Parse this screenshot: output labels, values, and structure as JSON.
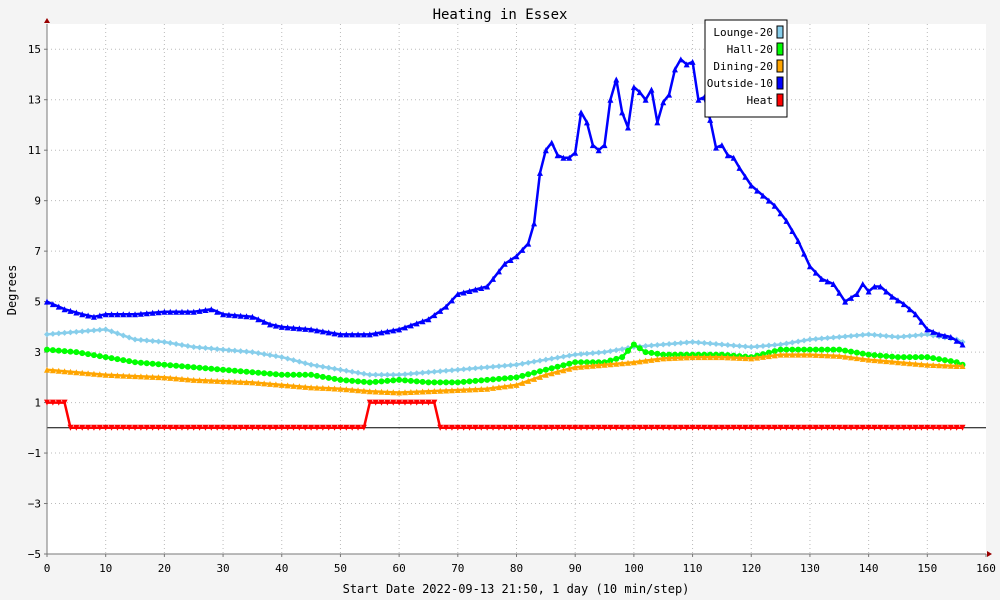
{
  "chart_data": {
    "type": "line",
    "title": "Heating in Essex",
    "xlabel": "Start Date 2022-09-13 21:50, 1 day (10 min/step)",
    "ylabel": "Degrees",
    "xlim": [
      0,
      160
    ],
    "ylim": [
      -5,
      16
    ],
    "x_ticks": [
      0,
      10,
      20,
      30,
      40,
      50,
      60,
      70,
      80,
      90,
      100,
      110,
      120,
      130,
      140,
      150,
      160
    ],
    "y_ticks": [
      -5,
      -3,
      -1,
      1,
      3,
      5,
      7,
      9,
      11,
      13,
      15
    ],
    "x_tick_labels": [
      "0",
      "10",
      "20",
      "30",
      "40",
      "50",
      "60",
      "70",
      "80",
      "90",
      "100",
      "110",
      "120",
      "130",
      "140",
      "150",
      "160"
    ],
    "y_tick_labels": [
      "−5",
      "−3",
      "−1",
      "1",
      "3",
      "5",
      "7",
      "9",
      "11",
      "13",
      "15"
    ],
    "grid": true,
    "legend_position": "top-right",
    "series": [
      {
        "name": "Lounge-20",
        "color": "#87ceeb",
        "marker": "diamond",
        "points": [
          [
            0,
            3.7
          ],
          [
            5,
            3.8
          ],
          [
            10,
            3.9
          ],
          [
            15,
            3.5
          ],
          [
            20,
            3.4
          ],
          [
            25,
            3.2
          ],
          [
            30,
            3.1
          ],
          [
            35,
            3.0
          ],
          [
            40,
            2.8
          ],
          [
            45,
            2.5
          ],
          [
            50,
            2.3
          ],
          [
            55,
            2.1
          ],
          [
            60,
            2.1
          ],
          [
            65,
            2.2
          ],
          [
            70,
            2.3
          ],
          [
            75,
            2.4
          ],
          [
            80,
            2.5
          ],
          [
            85,
            2.7
          ],
          [
            90,
            2.9
          ],
          [
            95,
            3.0
          ],
          [
            100,
            3.2
          ],
          [
            105,
            3.3
          ],
          [
            110,
            3.4
          ],
          [
            115,
            3.3
          ],
          [
            120,
            3.2
          ],
          [
            125,
            3.3
          ],
          [
            130,
            3.5
          ],
          [
            135,
            3.6
          ],
          [
            140,
            3.7
          ],
          [
            145,
            3.6
          ],
          [
            150,
            3.7
          ],
          [
            155,
            3.5
          ],
          [
            156,
            3.4
          ]
        ]
      },
      {
        "name": "Hall-20",
        "color": "#00ff00",
        "marker": "circle",
        "points": [
          [
            0,
            3.1
          ],
          [
            5,
            3.0
          ],
          [
            10,
            2.8
          ],
          [
            15,
            2.6
          ],
          [
            20,
            2.5
          ],
          [
            25,
            2.4
          ],
          [
            30,
            2.3
          ],
          [
            35,
            2.2
          ],
          [
            40,
            2.1
          ],
          [
            45,
            2.1
          ],
          [
            50,
            1.9
          ],
          [
            55,
            1.8
          ],
          [
            60,
            1.9
          ],
          [
            65,
            1.8
          ],
          [
            70,
            1.8
          ],
          [
            75,
            1.9
          ],
          [
            80,
            2.0
          ],
          [
            85,
            2.3
          ],
          [
            90,
            2.6
          ],
          [
            95,
            2.6
          ],
          [
            98,
            2.8
          ],
          [
            100,
            3.3
          ],
          [
            102,
            3.0
          ],
          [
            105,
            2.9
          ],
          [
            110,
            2.9
          ],
          [
            115,
            2.9
          ],
          [
            120,
            2.8
          ],
          [
            125,
            3.1
          ],
          [
            130,
            3.1
          ],
          [
            135,
            3.1
          ],
          [
            140,
            2.9
          ],
          [
            145,
            2.8
          ],
          [
            150,
            2.8
          ],
          [
            155,
            2.6
          ],
          [
            156,
            2.5
          ]
        ]
      },
      {
        "name": "Dining-20",
        "color": "#ffa500",
        "marker": "triangle-up",
        "points": [
          [
            0,
            2.3
          ],
          [
            5,
            2.2
          ],
          [
            10,
            2.1
          ],
          [
            15,
            2.05
          ],
          [
            20,
            2.0
          ],
          [
            25,
            1.9
          ],
          [
            30,
            1.85
          ],
          [
            35,
            1.8
          ],
          [
            40,
            1.7
          ],
          [
            45,
            1.6
          ],
          [
            50,
            1.55
          ],
          [
            55,
            1.45
          ],
          [
            60,
            1.4
          ],
          [
            65,
            1.45
          ],
          [
            70,
            1.5
          ],
          [
            75,
            1.55
          ],
          [
            80,
            1.7
          ],
          [
            85,
            2.1
          ],
          [
            90,
            2.4
          ],
          [
            95,
            2.5
          ],
          [
            100,
            2.6
          ],
          [
            105,
            2.75
          ],
          [
            110,
            2.8
          ],
          [
            115,
            2.8
          ],
          [
            120,
            2.75
          ],
          [
            125,
            2.9
          ],
          [
            130,
            2.9
          ],
          [
            135,
            2.85
          ],
          [
            140,
            2.7
          ],
          [
            145,
            2.6
          ],
          [
            150,
            2.5
          ],
          [
            155,
            2.45
          ],
          [
            156,
            2.45
          ]
        ]
      },
      {
        "name": "Outside-10",
        "color": "#0000ff",
        "marker": "triangle-up",
        "points": [
          [
            0,
            5.0
          ],
          [
            3,
            4.7
          ],
          [
            6,
            4.5
          ],
          [
            8,
            4.4
          ],
          [
            10,
            4.5
          ],
          [
            15,
            4.5
          ],
          [
            20,
            4.6
          ],
          [
            25,
            4.6
          ],
          [
            28,
            4.7
          ],
          [
            30,
            4.5
          ],
          [
            35,
            4.4
          ],
          [
            38,
            4.1
          ],
          [
            40,
            4.0
          ],
          [
            45,
            3.9
          ],
          [
            50,
            3.7
          ],
          [
            55,
            3.7
          ],
          [
            60,
            3.9
          ],
          [
            65,
            4.3
          ],
          [
            68,
            4.8
          ],
          [
            70,
            5.3
          ],
          [
            75,
            5.6
          ],
          [
            78,
            6.5
          ],
          [
            80,
            6.8
          ],
          [
            82,
            7.3
          ],
          [
            83,
            8.1
          ],
          [
            84,
            10.1
          ],
          [
            85,
            11.0
          ],
          [
            86,
            11.3
          ],
          [
            87,
            10.8
          ],
          [
            88,
            10.7
          ],
          [
            89,
            10.7
          ],
          [
            90,
            10.9
          ],
          [
            91,
            12.5
          ],
          [
            92,
            12.1
          ],
          [
            93,
            11.2
          ],
          [
            94,
            11.0
          ],
          [
            95,
            11.2
          ],
          [
            96,
            13.0
          ],
          [
            97,
            13.8
          ],
          [
            98,
            12.5
          ],
          [
            99,
            11.9
          ],
          [
            100,
            13.5
          ],
          [
            101,
            13.3
          ],
          [
            102,
            13.0
          ],
          [
            103,
            13.4
          ],
          [
            104,
            12.1
          ],
          [
            105,
            12.9
          ],
          [
            106,
            13.2
          ],
          [
            107,
            14.2
          ],
          [
            108,
            14.6
          ],
          [
            109,
            14.4
          ],
          [
            110,
            14.5
          ],
          [
            111,
            13.0
          ],
          [
            112,
            13.1
          ],
          [
            113,
            12.2
          ],
          [
            114,
            11.1
          ],
          [
            115,
            11.2
          ],
          [
            116,
            10.8
          ],
          [
            117,
            10.7
          ],
          [
            118,
            10.3
          ],
          [
            120,
            9.6
          ],
          [
            122,
            9.2
          ],
          [
            124,
            8.8
          ],
          [
            126,
            8.2
          ],
          [
            128,
            7.4
          ],
          [
            130,
            6.4
          ],
          [
            132,
            5.9
          ],
          [
            134,
            5.7
          ],
          [
            136,
            5.0
          ],
          [
            138,
            5.3
          ],
          [
            139,
            5.7
          ],
          [
            140,
            5.4
          ],
          [
            141,
            5.6
          ],
          [
            142,
            5.6
          ],
          [
            144,
            5.2
          ],
          [
            146,
            4.9
          ],
          [
            148,
            4.5
          ],
          [
            150,
            3.9
          ],
          [
            152,
            3.7
          ],
          [
            154,
            3.6
          ],
          [
            156,
            3.3
          ]
        ]
      },
      {
        "name": "Heat",
        "color": "#ff0000",
        "marker": "triangle-down",
        "points": [
          [
            0,
            1.0
          ],
          [
            3,
            1.0
          ],
          [
            4,
            0.0
          ],
          [
            54,
            0.0
          ],
          [
            55,
            1.0
          ],
          [
            66,
            1.0
          ],
          [
            67,
            0.0
          ],
          [
            156,
            0.0
          ]
        ]
      }
    ]
  }
}
